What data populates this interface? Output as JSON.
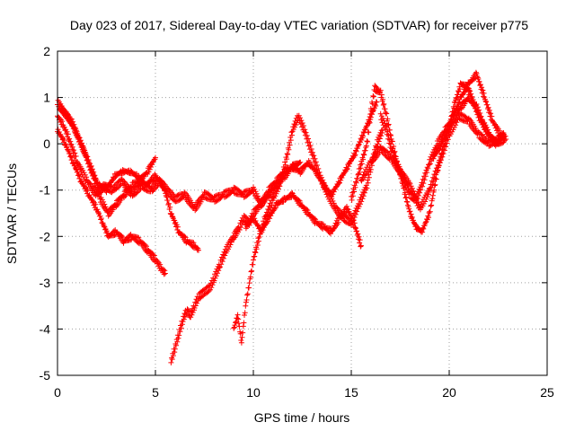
{
  "chart_data": {
    "type": "scatter",
    "title": "Day 023 of 2017, Sidereal Day-to-day VTEC variation (SDTVAR) for receiver p775",
    "xlabel": "GPS time / hours",
    "ylabel": "SDTVAR / TECUs",
    "xlim": [
      0,
      25
    ],
    "ylim": [
      -5,
      2
    ],
    "xticks": [
      0,
      5,
      10,
      15,
      20,
      25
    ],
    "yticks": [
      -5,
      -4,
      -3,
      -2,
      -1,
      0,
      1,
      2
    ],
    "grid": true,
    "marker": "+",
    "color": "#ff0000",
    "series": [
      {
        "name": "trace-1",
        "x": [
          0,
          0.3,
          0.6,
          1.0,
          1.5,
          2.0,
          2.4,
          2.8,
          3.3,
          3.8,
          4.3,
          4.8,
          5.2,
          5.6,
          6.0,
          6.5,
          7.0,
          7.5,
          8.0,
          8.5,
          9.0,
          9.5,
          10.0,
          10.4,
          10.8,
          11.2,
          11.6,
          12.0,
          12.4
        ],
        "y": [
          0.6,
          0.4,
          0.1,
          -0.4,
          -0.8,
          -1.1,
          -0.9,
          -1.0,
          -0.8,
          -1.1,
          -0.9,
          -1.0,
          -0.8,
          -1.0,
          -1.2,
          -1.1,
          -1.4,
          -1.1,
          -1.2,
          -1.1,
          -1.0,
          -1.1,
          -1.0,
          -1.3,
          -1.0,
          -0.8,
          -0.6,
          -0.5,
          -0.4
        ]
      },
      {
        "name": "trace-2",
        "x": [
          0,
          0.4,
          0.8,
          1.2,
          1.6,
          2.0,
          2.3,
          2.6,
          3.0,
          3.4,
          3.8,
          4.2,
          4.6,
          5.0,
          5.3,
          5.5
        ],
        "y": [
          0.3,
          0.0,
          -0.4,
          -0.8,
          -1.1,
          -1.4,
          -1.7,
          -2.0,
          -1.9,
          -2.1,
          -2.0,
          -2.1,
          -2.3,
          -2.5,
          -2.7,
          -2.8
        ]
      },
      {
        "name": "trace-3",
        "x": [
          0.1,
          0.5,
          0.9,
          1.3,
          1.7,
          2.1,
          2.5,
          2.9,
          3.3,
          3.7,
          4.1,
          4.5,
          5.0,
          5.4,
          5.8,
          6.2,
          6.6,
          7.0,
          7.2
        ],
        "y": [
          0.8,
          0.6,
          0.3,
          -0.1,
          -0.5,
          -0.9,
          -1.0,
          -0.7,
          -0.6,
          -0.6,
          -0.7,
          -0.9,
          -0.7,
          -0.9,
          -1.5,
          -1.9,
          -2.1,
          -2.2,
          -2.3
        ]
      },
      {
        "name": "trace-4",
        "x": [
          0,
          0.3,
          0.7,
          1.1,
          1.5,
          1.9,
          2.2,
          2.6,
          3.0,
          3.4,
          3.8,
          4.2,
          4.6,
          5.0
        ],
        "y": [
          0.9,
          0.7,
          0.5,
          0.1,
          -0.3,
          -0.8,
          -1.2,
          -1.5,
          -1.3,
          -1.1,
          -0.9,
          -0.8,
          -0.6,
          -0.3
        ]
      },
      {
        "name": "trace-5",
        "x": [
          5.8,
          6.0,
          6.2,
          6.4,
          6.6,
          6.8,
          7.0,
          7.2,
          7.5,
          7.8,
          8.0,
          8.3,
          8.6,
          9.0,
          9.3,
          9.5,
          9.8,
          10.0,
          10.4,
          10.8,
          11.2,
          11.6,
          12.0,
          12.4,
          12.8,
          13.2,
          13.6,
          14.0,
          14.4,
          14.8,
          15.2,
          15.6,
          16.0,
          16.3
        ],
        "y": [
          -4.7,
          -4.4,
          -4.1,
          -3.8,
          -3.6,
          -3.7,
          -3.5,
          -3.3,
          -3.2,
          -3.1,
          -2.9,
          -2.6,
          -2.3,
          -2.0,
          -1.8,
          -1.6,
          -1.7,
          -1.5,
          -1.3,
          -1.1,
          -0.9,
          -0.7,
          -0.5,
          -0.6,
          -0.4,
          -0.6,
          -0.9,
          -1.1,
          -0.8,
          -0.5,
          -0.2,
          0.2,
          0.6,
          0.9
        ]
      },
      {
        "name": "trace-6",
        "x": [
          9.0,
          9.2,
          9.4,
          9.6,
          9.8,
          10.0,
          10.3,
          10.6,
          11.0,
          11.4,
          11.7,
          12.0,
          12.3,
          12.6,
          13.0,
          13.4,
          13.8,
          14.2,
          14.6,
          15.0,
          15.4,
          15.8,
          16.0,
          16.3,
          16.6
        ],
        "y": [
          -4.0,
          -3.7,
          -4.3,
          -3.5,
          -3.0,
          -2.5,
          -2.0,
          -1.6,
          -1.2,
          -0.8,
          -0.3,
          0.3,
          0.6,
          0.3,
          -0.2,
          -0.7,
          -1.1,
          -1.4,
          -1.6,
          -1.7,
          -1.3,
          -0.9,
          -0.5,
          0.0,
          0.3
        ]
      },
      {
        "name": "trace-7",
        "x": [
          9.6,
          10.0,
          10.4,
          10.8,
          11.2,
          11.6,
          12.0,
          12.4,
          12.8,
          13.2,
          13.6,
          14.0,
          14.4,
          14.8,
          15.2,
          15.5
        ],
        "y": [
          -1.8,
          -1.6,
          -1.9,
          -1.6,
          -1.3,
          -1.2,
          -1.1,
          -1.3,
          -1.5,
          -1.7,
          -1.8,
          -1.9,
          -1.6,
          -1.4,
          -1.8,
          -2.2
        ]
      },
      {
        "name": "trace-8",
        "x": [
          15.0,
          15.4,
          15.8,
          16.0,
          16.2,
          16.5,
          16.8,
          17.1,
          17.4,
          17.7,
          18.0,
          18.3,
          18.6,
          19.0,
          19.4,
          19.8,
          20.2,
          20.6,
          21.0,
          21.4,
          21.8,
          22.2,
          22.6,
          22.9
        ],
        "y": [
          -1.2,
          -0.6,
          0.0,
          0.7,
          1.2,
          1.1,
          0.6,
          0.0,
          -0.5,
          -1.0,
          -1.5,
          -1.8,
          -1.9,
          -1.5,
          -0.6,
          0.1,
          0.6,
          1.0,
          1.3,
          1.5,
          1.0,
          0.5,
          0.2,
          0.1
        ]
      },
      {
        "name": "trace-9",
        "x": [
          16.5,
          16.8,
          17.1,
          17.4,
          17.7,
          18.0,
          18.3,
          18.6,
          19.0,
          19.4,
          19.8,
          20.2,
          20.6,
          21.0,
          21.4,
          21.8,
          22.2,
          22.5
        ],
        "y": [
          0.6,
          0.3,
          -0.2,
          -0.5,
          -0.8,
          -1.1,
          -1.2,
          -0.9,
          -0.4,
          0.0,
          0.3,
          0.5,
          0.8,
          1.0,
          0.8,
          0.4,
          0.1,
          0.0
        ]
      },
      {
        "name": "trace-10",
        "x": [
          15.5,
          16.0,
          16.5,
          17.0,
          17.5,
          18.0,
          18.5,
          19.0,
          19.5,
          20.0,
          20.5,
          21.0,
          21.5,
          22.0,
          22.5,
          22.8
        ],
        "y": [
          -0.8,
          -0.4,
          -0.1,
          -0.3,
          -0.6,
          -0.9,
          -1.4,
          -1.0,
          -0.4,
          0.2,
          0.6,
          0.5,
          0.2,
          0.0,
          0.1,
          0.2
        ]
      },
      {
        "name": "trace-11",
        "x": [
          19.2,
          19.6,
          20.0,
          20.3,
          20.6,
          21.0,
          21.3,
          21.6,
          22.0,
          22.4,
          22.8
        ],
        "y": [
          -0.3,
          0.0,
          0.4,
          0.9,
          1.3,
          1.2,
          0.8,
          0.5,
          0.2,
          0.0,
          0.1
        ]
      }
    ]
  }
}
